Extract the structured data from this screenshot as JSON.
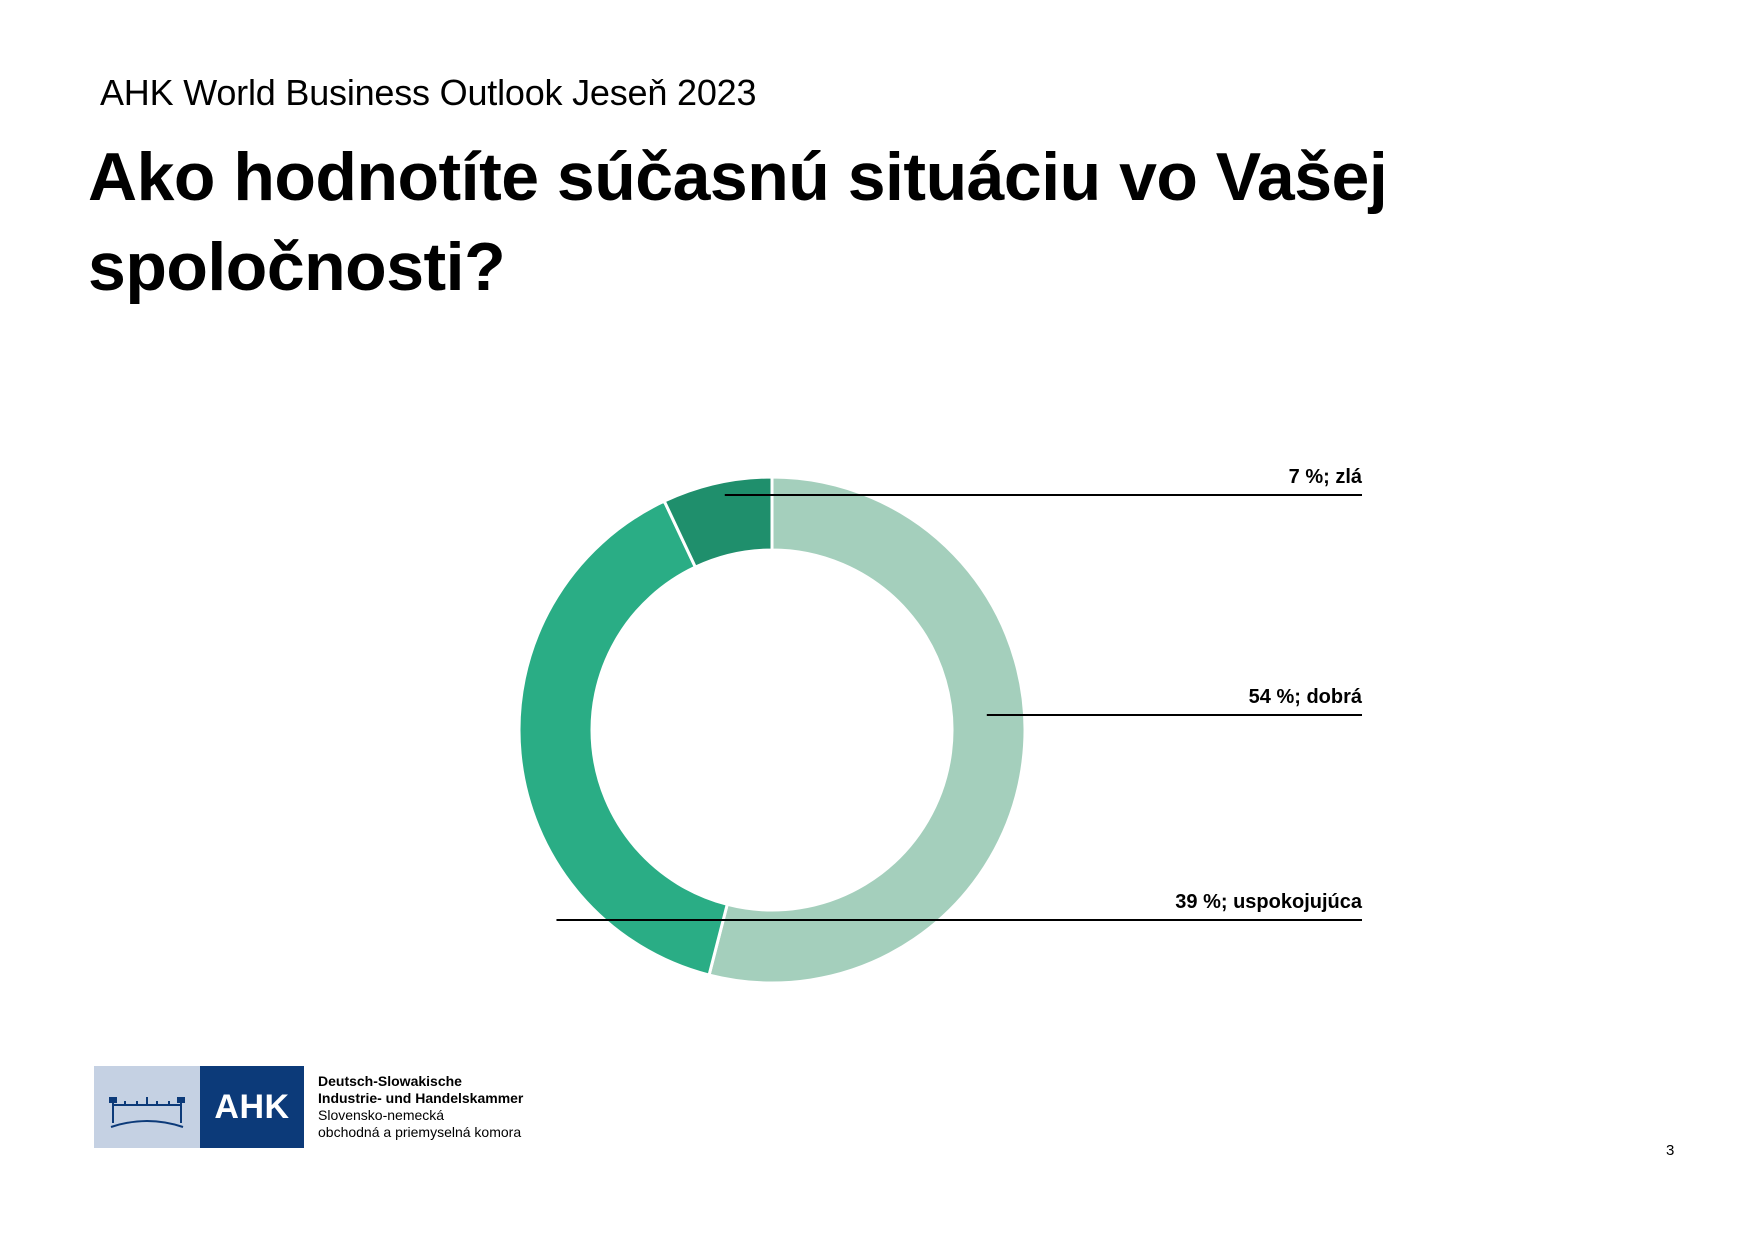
{
  "header": {
    "kicker": "AHK World Business Outlook Jeseň 2023",
    "title": "Ako hodnotíte súčasnú situáciu vo Vašej spoločnosti?"
  },
  "chart_data": {
    "type": "pie",
    "donut": true,
    "title": "",
    "slices": [
      {
        "label": "dobrá",
        "value": 54,
        "display": "54 %; dobrá",
        "color": "#a4cfbc"
      },
      {
        "label": "uspokojujúca",
        "value": 39,
        "display": "39 %; uspokojujúca",
        "color": "#2aad85"
      },
      {
        "label": "zlá",
        "value": 7,
        "display": "7 %; zlá",
        "color": "#1f8f6c"
      }
    ],
    "legend": "none"
  },
  "footer": {
    "logo_mark": "AHK",
    "org_line1": "Deutsch-Slowakische",
    "org_line2": "Industrie- und Handelskammer",
    "org_line3": "Slovensko-nemecká",
    "org_line4": "obchodná a priemyselná komora",
    "page_number": "3"
  }
}
